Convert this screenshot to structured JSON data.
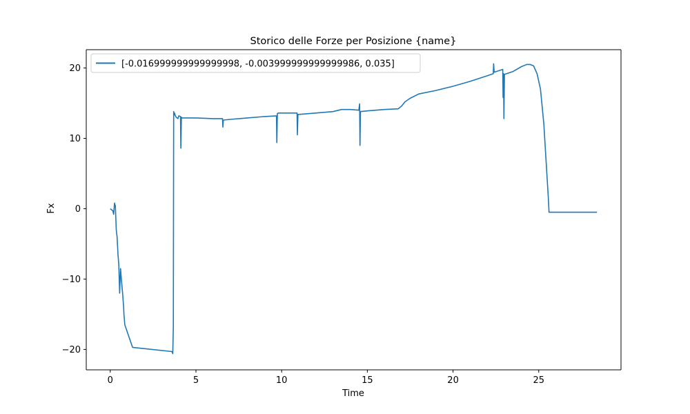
{
  "chart_data": {
    "type": "line",
    "title": "Storico delle Forze per Posizione {name}",
    "xlabel": "Time",
    "ylabel": "Fx",
    "xlim": [
      -1.4,
      29.8
    ],
    "ylim": [
      -22.9,
      22.6
    ],
    "xticks": [
      0,
      5,
      10,
      15,
      20,
      25
    ],
    "yticks": [
      -20,
      -10,
      0,
      10,
      20
    ],
    "xtick_labels": [
      "0",
      "5",
      "10",
      "15",
      "20",
      "25"
    ],
    "ytick_labels": [
      "−20",
      "−10",
      "0",
      "10",
      "20"
    ],
    "grid": false,
    "legend_position": "upper-left",
    "series": [
      {
        "name": "[-0.016999999999999998, -0.003999999999999986, 0.035]",
        "color": "#1f77b4",
        "x": [
          0.0,
          0.1,
          0.15,
          0.2,
          0.25,
          0.27,
          0.3,
          0.35,
          0.4,
          0.45,
          0.5,
          0.55,
          0.6,
          0.65,
          0.7,
          0.72,
          0.75,
          0.78,
          0.8,
          0.85,
          1.3,
          3.6,
          3.65,
          3.68,
          3.7,
          3.72,
          3.75,
          3.8,
          3.85,
          3.9,
          3.95,
          4.0,
          4.1,
          4.12,
          4.15,
          4.2,
          4.5,
          5.0,
          6.0,
          6.55,
          6.57,
          6.6,
          7.0,
          8.0,
          9.0,
          9.7,
          9.72,
          9.75,
          9.8,
          10.5,
          10.9,
          10.92,
          10.95,
          11.0,
          12.0,
          13.0,
          13.5,
          14.0,
          14.5,
          14.55,
          14.57,
          14.6,
          15.0,
          16.0,
          16.8,
          17.0,
          17.2,
          17.5,
          18.0,
          19.0,
          20.0,
          21.0,
          22.0,
          22.35,
          22.37,
          22.4,
          22.9,
          22.92,
          22.95,
          22.97,
          23.0,
          23.5,
          24.0,
          24.3,
          24.5,
          24.7,
          24.9,
          25.1,
          25.3,
          25.45,
          25.55,
          25.6,
          25.65,
          28.4
        ],
        "y": [
          0.0,
          -0.2,
          -0.3,
          -0.8,
          0.8,
          0.6,
          0.4,
          -3.0,
          -4.0,
          -6.5,
          -8.0,
          -12.0,
          -8.5,
          -10.0,
          -11.5,
          -12.0,
          -13.0,
          -14.0,
          -15.0,
          -16.5,
          -19.7,
          -20.3,
          -20.6,
          -16.8,
          13.8,
          13.3,
          13.6,
          13.2,
          13.0,
          12.9,
          12.8,
          13.2,
          13.1,
          8.6,
          13.0,
          12.9,
          12.9,
          12.9,
          12.8,
          12.8,
          11.6,
          12.6,
          12.7,
          12.9,
          13.1,
          13.2,
          9.4,
          13.5,
          13.6,
          13.6,
          13.6,
          10.5,
          13.4,
          13.4,
          13.6,
          13.8,
          14.1,
          14.1,
          14.0,
          14.9,
          9.0,
          13.8,
          13.9,
          14.1,
          14.2,
          14.6,
          15.2,
          15.7,
          16.3,
          16.8,
          17.4,
          18.1,
          18.9,
          19.2,
          20.6,
          19.4,
          19.8,
          15.8,
          19.2,
          12.8,
          19.1,
          19.5,
          20.2,
          20.5,
          20.5,
          20.3,
          19.2,
          17.0,
          12.0,
          6.0,
          2.0,
          -0.5,
          -0.5,
          -0.5
        ]
      }
    ]
  }
}
